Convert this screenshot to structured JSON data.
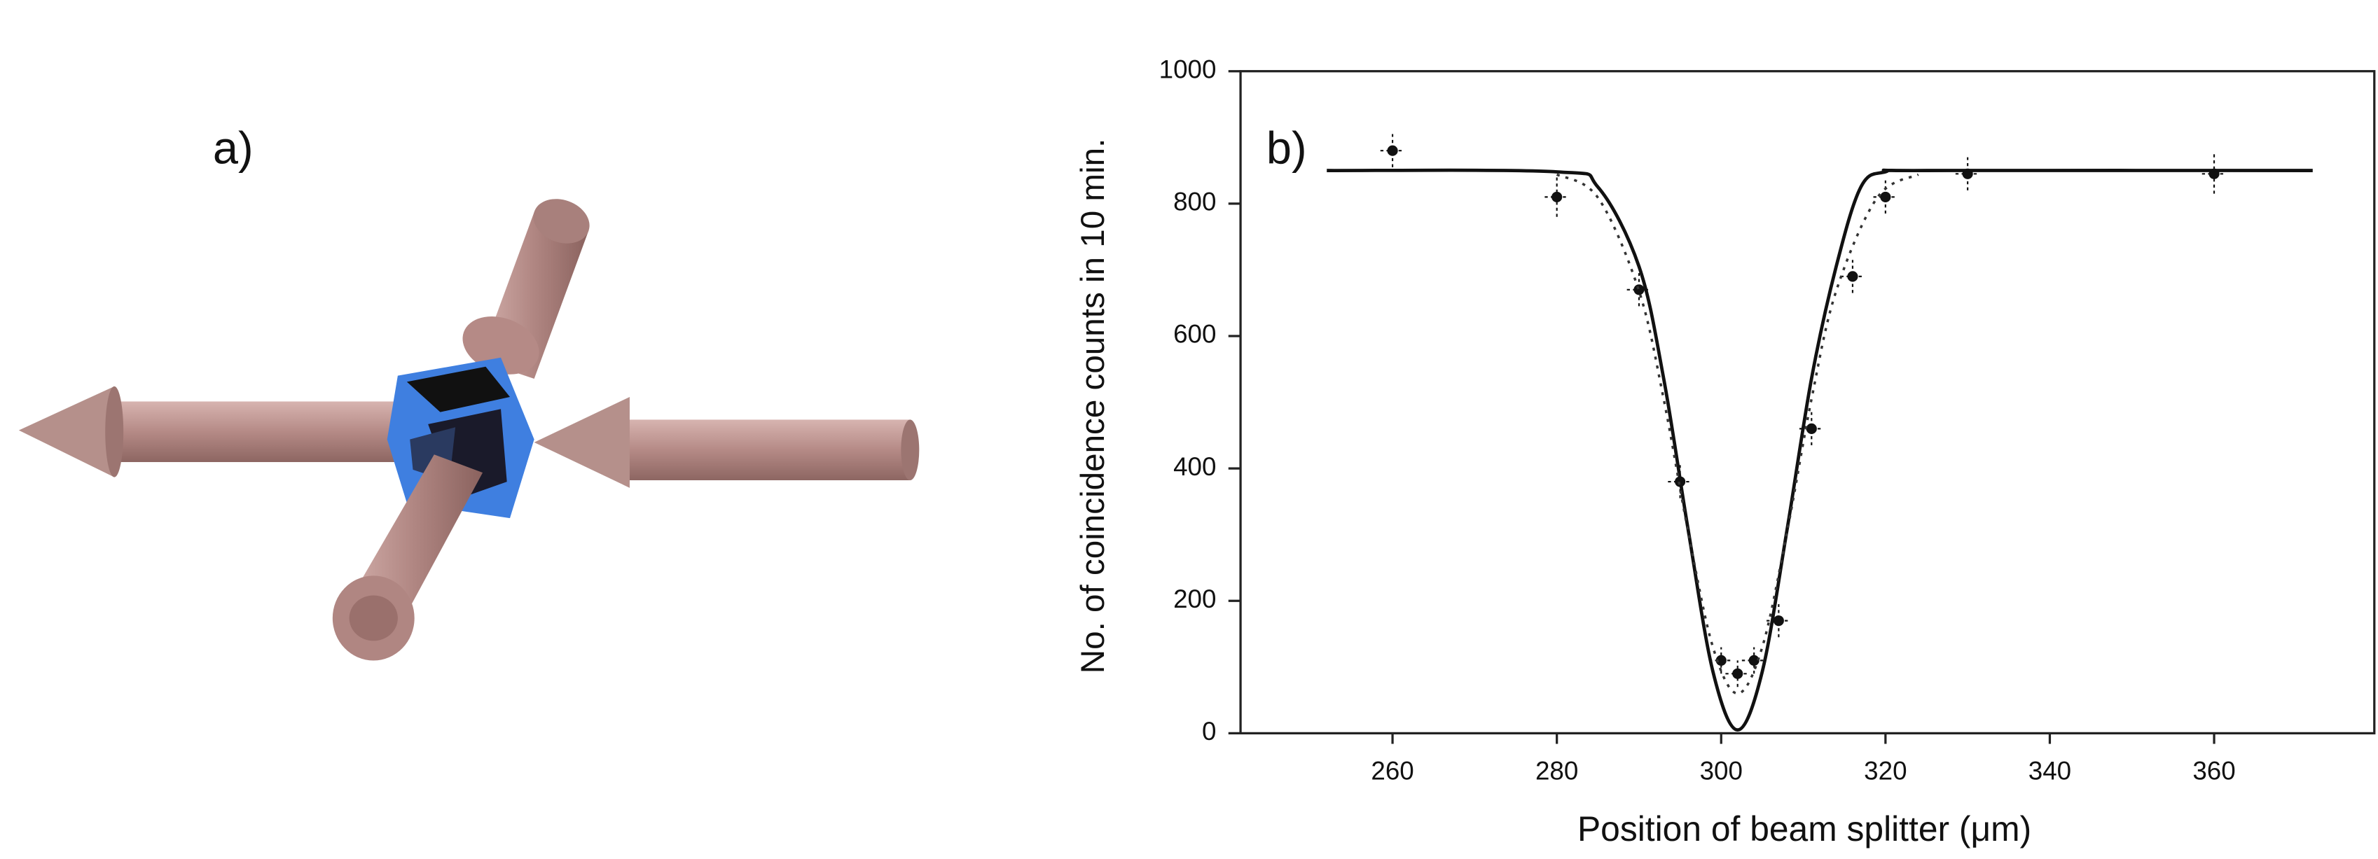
{
  "panel_a": {
    "label": "a)"
  },
  "chart_data": {
    "type": "scatter",
    "label": "b)",
    "xlabel": "Position of beam splitter (μm)",
    "ylabel": "No. of coincidence counts in 10 min.",
    "xlim": [
      241.5,
      379.5
    ],
    "ylim": [
      0,
      1000
    ],
    "xticks": [
      260,
      280,
      300,
      320,
      340,
      360
    ],
    "yticks": [
      0,
      200,
      400,
      600,
      800,
      1000
    ],
    "series": [
      {
        "style": "points",
        "color": "#111111",
        "x": [
          260,
          280,
          290,
          295,
          300,
          302,
          304,
          307,
          311,
          316,
          320,
          330,
          360
        ],
        "values": [
          880,
          810,
          670,
          380,
          110,
          90,
          110,
          170,
          460,
          690,
          810,
          845,
          845
        ],
        "yerr": [
          25,
          30,
          25,
          25,
          20,
          20,
          20,
          25,
          25,
          25,
          25,
          25,
          30
        ]
      },
      {
        "style": "solid",
        "color": "#111111",
        "x": [
          252,
          280,
          285,
          290,
          293,
          296,
          299,
          302,
          305,
          308,
          311,
          314,
          317,
          320,
          325,
          372
        ],
        "values": [
          850,
          848,
          825,
          705,
          536,
          306,
          93,
          5,
          93,
          306,
          536,
          705,
          825,
          848,
          850,
          850
        ]
      },
      {
        "style": "dotted",
        "color": "#333333",
        "x": [
          280,
          285,
          290,
          293,
          296,
          299,
          302,
          305,
          308,
          311,
          314,
          319,
          324
        ],
        "values": [
          844,
          809,
          668,
          505,
          303,
          130,
          60,
          130,
          303,
          505,
          668,
          809,
          844
        ]
      }
    ]
  }
}
